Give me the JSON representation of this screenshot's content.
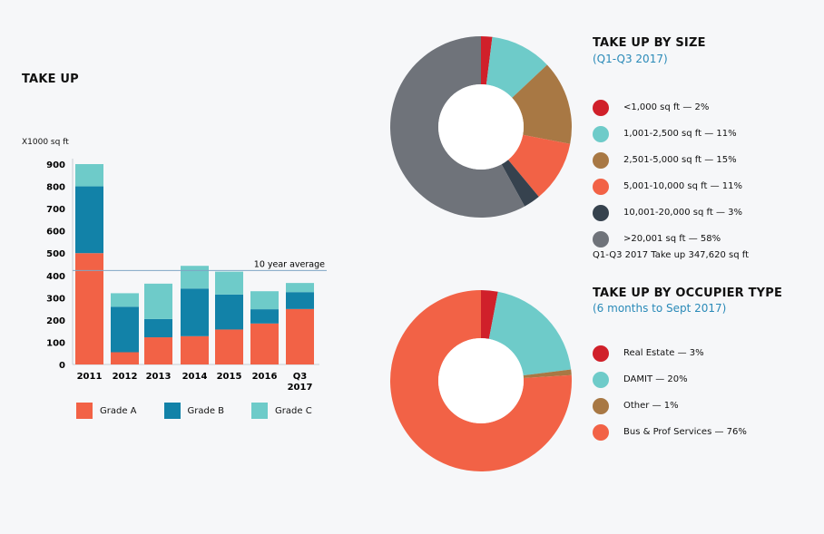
{
  "chart_data": [
    {
      "type": "bar",
      "stacked": true,
      "title": "TAKE UP",
      "ylabel": "X1000 sq ft",
      "ylim": [
        0,
        900
      ],
      "yticks": [
        "0",
        "100",
        "200",
        "300",
        "400",
        "500",
        "600",
        "700",
        "800",
        "900"
      ],
      "categories": [
        "2011",
        "2012",
        "2013",
        "2014",
        "2015",
        "2016",
        "Q3 2017"
      ],
      "series": [
        {
          "name": "Grade A",
          "color": "#f26246",
          "values": [
            500,
            55,
            122,
            127,
            157,
            184,
            249
          ]
        },
        {
          "name": "Grade B",
          "color": "#1282a8",
          "values": [
            300,
            204,
            82,
            214,
            157,
            64,
            76
          ]
        },
        {
          "name": "Grade C",
          "color": "#6ecbc9",
          "values": [
            100,
            61,
            159,
            102,
            103,
            81,
            41
          ]
        }
      ],
      "reference_line": {
        "label": "10 year average",
        "value": 422
      }
    },
    {
      "type": "pie",
      "donut": true,
      "title": "TAKE UP BY SIZE",
      "subtitle": "(Q1-Q3 2017)",
      "slices": [
        {
          "label": "<1,000 sq ft — 2%",
          "value": 2,
          "color": "#d0202a"
        },
        {
          "label": "1,001-2,500 sq ft — 11%",
          "value": 11,
          "color": "#6ecbc9"
        },
        {
          "label": "2,501-5,000 sq ft — 15%",
          "value": 15,
          "color": "#a87844"
        },
        {
          "label": "5,001-10,000 sq ft — 11%",
          "value": 11,
          "color": "#f26246"
        },
        {
          "label": "10,001-20,000 sq ft — 3%",
          "value": 3,
          "color": "#36424e"
        },
        {
          "label": ">20,001 sq ft — 58%",
          "value": 58,
          "color": "#6f737a"
        }
      ],
      "note": "Q1-Q3 2017 Take up 347,620 sq ft"
    },
    {
      "type": "pie",
      "donut": true,
      "title": "TAKE UP BY OCCUPIER TYPE",
      "subtitle": "(6 months to Sept 2017)",
      "slices": [
        {
          "label": "Real Estate — 3%",
          "value": 3,
          "color": "#d0202a"
        },
        {
          "label": "DAMIT — 20%",
          "value": 20,
          "color": "#6ecbc9"
        },
        {
          "label": "Other — 1%",
          "value": 1,
          "color": "#a87844"
        },
        {
          "label": "Bus & Prof Services — 76%",
          "value": 76,
          "color": "#f26246"
        }
      ]
    }
  ]
}
